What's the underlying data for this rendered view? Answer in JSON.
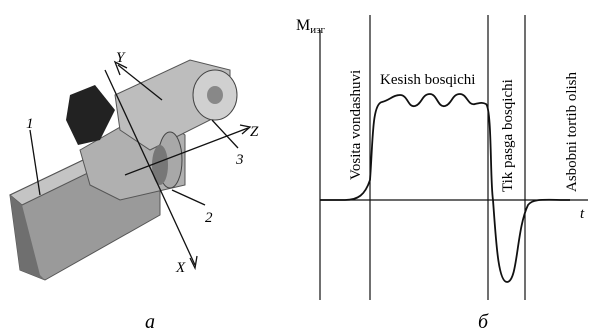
{
  "left": {
    "label": "a",
    "callouts": [
      "1",
      "2",
      "3"
    ],
    "axes": [
      "X",
      "Y",
      "Z"
    ]
  },
  "right": {
    "label": "б",
    "y_axis": {
      "symbol": "M",
      "subscript": "изг"
    },
    "x_axis": "t",
    "phases": [
      "Vosita vondashuvi",
      "Kesish bosqichi",
      "Tik pasga bosqichi",
      "Asbobni tortib olish"
    ]
  }
}
